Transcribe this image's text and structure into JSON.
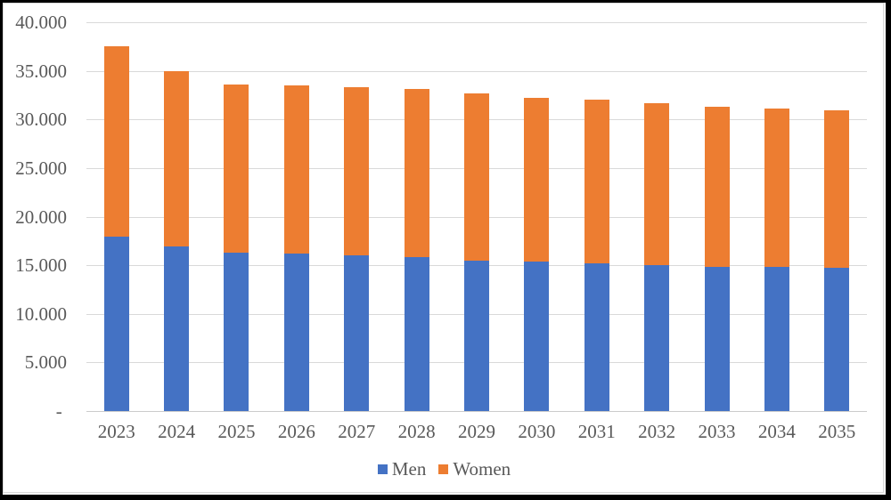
{
  "window": {
    "background": "#ffffff",
    "outer_border_color": "#000000",
    "chart_border_color": "#D9D9D9"
  },
  "chart_data": {
    "type": "bar",
    "stacked": true,
    "title": "",
    "xlabel": "",
    "ylabel": "",
    "categories": [
      "2023",
      "2024",
      "2025",
      "2026",
      "2027",
      "2028",
      "2029",
      "2030",
      "2031",
      "2032",
      "2033",
      "2034",
      "2035"
    ],
    "series": [
      {
        "name": "Men",
        "color": "#4472C4",
        "values": [
          17900,
          16900,
          16300,
          16200,
          16000,
          15800,
          15500,
          15400,
          15200,
          15000,
          14800,
          14800,
          14700
        ]
      },
      {
        "name": "Women",
        "color": "#ED7D31",
        "values": [
          19600,
          18100,
          17300,
          17300,
          17300,
          17300,
          17200,
          16800,
          16800,
          16700,
          16500,
          16300,
          16200
        ]
      }
    ],
    "ylim": [
      0,
      40000
    ],
    "ytick_interval": 5000,
    "yticks": [
      {
        "value": 0,
        "label": "- "
      },
      {
        "value": 5000,
        "label": "5.000"
      },
      {
        "value": 10000,
        "label": "10.000"
      },
      {
        "value": 15000,
        "label": "15.000"
      },
      {
        "value": 20000,
        "label": "20.000"
      },
      {
        "value": 25000,
        "label": "25.000"
      },
      {
        "value": 30000,
        "label": "30.000"
      },
      {
        "value": 35000,
        "label": "35.000"
      },
      {
        "value": 40000,
        "label": "40.000"
      }
    ],
    "grid": "horizontal-only",
    "gridline_color": "#D9D9D9",
    "axis_line_color": "#CBCBCB",
    "tick_label_color": "#595959",
    "legend_position": "bottom",
    "legend_labels": [
      "Men",
      "Women"
    ]
  }
}
